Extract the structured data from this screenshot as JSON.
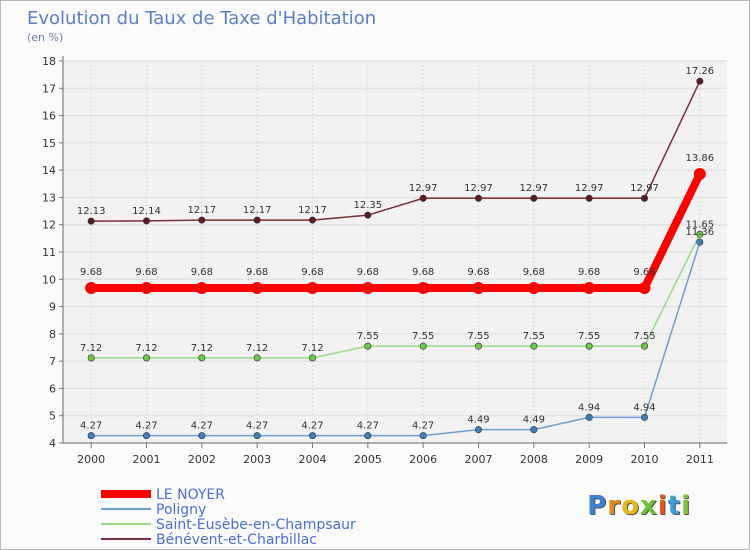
{
  "title": "Evolution du Taux de Taxe d'Habitation",
  "subtitle": "(en %)",
  "logo": {
    "text": "Proxiti",
    "letters": [
      "P",
      "r",
      "o",
      "x",
      "i",
      "t",
      "i"
    ],
    "colors": [
      "#3d7fd6",
      "#e08a1a",
      "#e0b81a",
      "#6fbf3a",
      "#e05a1a",
      "#3d9fd6",
      "#7fbf3a"
    ]
  },
  "chart_data": {
    "type": "line",
    "title": "Evolution du Taux de Taxe d'Habitation",
    "ylabel": "(en %)",
    "xlabel": "",
    "ylim": [
      4,
      18
    ],
    "yticks": [
      "4",
      "5",
      "6",
      "7",
      "8",
      "9",
      "10",
      "11",
      "12",
      "13",
      "14",
      "15",
      "16",
      "17",
      "18"
    ],
    "categories": [
      "2000",
      "2001",
      "2002",
      "2003",
      "2004",
      "2005",
      "2006",
      "2007",
      "2008",
      "2009",
      "2010",
      "2011"
    ],
    "grid": true,
    "legend_position": "bottom-left",
    "series": [
      {
        "name": "Bénévent-et-Charbillac",
        "color": "#7a2f3a",
        "dot": "#5e1a22",
        "values": [
          12.13,
          12.14,
          12.17,
          12.17,
          12.17,
          12.35,
          12.97,
          12.97,
          12.97,
          12.97,
          12.97,
          17.26
        ],
        "labels": [
          "12.13",
          "12.14",
          "12.17",
          "12.17",
          "12.17",
          "12.35",
          "12.97",
          "12.97",
          "12.97",
          "12.97",
          "12.97",
          "17.26"
        ]
      },
      {
        "name": "Saint-Eusèbe-en-Champsaur",
        "color": "#9ad88a",
        "dot": "#6cc84a",
        "values": [
          7.12,
          7.12,
          7.12,
          7.12,
          7.12,
          7.55,
          7.55,
          7.55,
          7.55,
          7.55,
          7.55,
          11.65
        ],
        "labels": [
          "7.12",
          "7.12",
          "7.12",
          "7.12",
          "7.12",
          "7.55",
          "7.55",
          "7.55",
          "7.55",
          "7.55",
          "7.55",
          "11.65"
        ]
      },
      {
        "name": "Poligny",
        "color": "#6f9fd0",
        "dot": "#3f7fc0",
        "values": [
          4.27,
          4.27,
          4.27,
          4.27,
          4.27,
          4.27,
          4.27,
          4.49,
          4.49,
          4.94,
          4.94,
          11.36
        ],
        "labels": [
          "4.27",
          "4.27",
          "4.27",
          "4.27",
          "4.27",
          "4.27",
          "4.27",
          "4.49",
          "4.49",
          "4.94",
          "4.94",
          "11.36"
        ]
      },
      {
        "name": "LE NOYER",
        "color": "#ff0000",
        "dot": "#ff0000",
        "main": true,
        "values": [
          9.68,
          9.68,
          9.68,
          9.68,
          9.68,
          9.68,
          9.68,
          9.68,
          9.68,
          9.68,
          9.68,
          13.86
        ],
        "labels": [
          "9.68",
          "9.68",
          "9.68",
          "9.68",
          "9.68",
          "9.68",
          "9.68",
          "9.68",
          "9.68",
          "9.68",
          "9.68",
          "13.86"
        ]
      }
    ],
    "legend": [
      "LE NOYER",
      "Poligny",
      "Saint-Eusèbe-en-Champsaur",
      "Bénévent-et-Charbillac"
    ]
  }
}
